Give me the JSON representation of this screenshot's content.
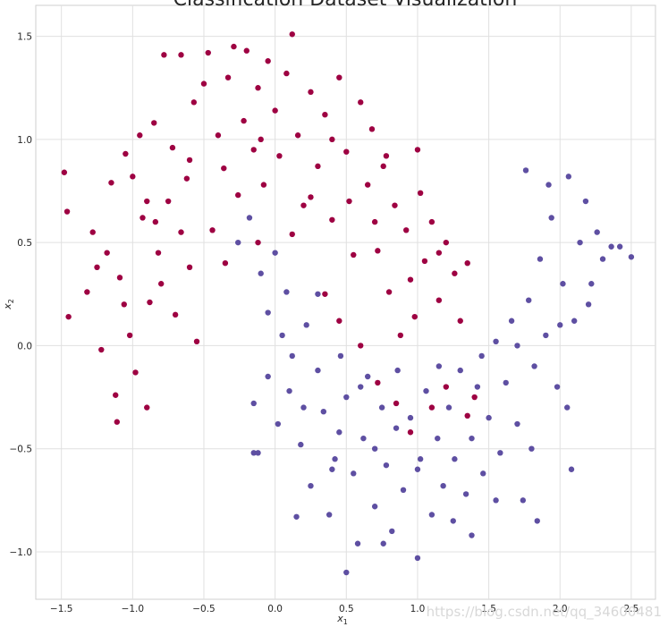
{
  "chart_data": {
    "type": "scatter",
    "title": "Classification Dataset Visualization",
    "xlabel": "x",
    "xlabel_sub": "1",
    "ylabel": "x",
    "ylabel_sub": "2",
    "xlim": [
      -1.68,
      2.67
    ],
    "ylim": [
      -1.23,
      1.65
    ],
    "xticks": [
      -1.5,
      -1.0,
      -0.5,
      0.0,
      0.5,
      1.0,
      1.5,
      2.0,
      2.5
    ],
    "xtick_labels": [
      "−1.5",
      "−1.0",
      "−0.5",
      "0.0",
      "0.5",
      "1.0",
      "1.5",
      "2.0",
      "2.5"
    ],
    "yticks": [
      -1.0,
      -0.5,
      0.0,
      0.5,
      1.0,
      1.5
    ],
    "ytick_labels": [
      "−1.0",
      "−0.5",
      "0.0",
      "0.5",
      "1.0",
      "1.5"
    ],
    "grid": true,
    "watermark": "https://blog.csdn.net/qq_34600481",
    "series": [
      {
        "color": "#9e0142",
        "points": [
          [
            -1.48,
            0.84
          ],
          [
            -1.46,
            0.65
          ],
          [
            -1.45,
            0.14
          ],
          [
            -1.32,
            0.26
          ],
          [
            -1.28,
            0.55
          ],
          [
            -1.22,
            -0.02
          ],
          [
            -1.18,
            0.45
          ],
          [
            -1.15,
            0.79
          ],
          [
            -1.12,
            -0.24
          ],
          [
            -1.11,
            -0.37
          ],
          [
            -1.09,
            0.33
          ],
          [
            -1.05,
            0.93
          ],
          [
            -1.02,
            0.05
          ],
          [
            -0.98,
            -0.13
          ],
          [
            -0.95,
            1.02
          ],
          [
            -0.93,
            0.62
          ],
          [
            -0.9,
            -0.3
          ],
          [
            -0.88,
            0.21
          ],
          [
            -0.85,
            1.08
          ],
          [
            -0.82,
            0.45
          ],
          [
            -0.78,
            1.41
          ],
          [
            -0.75,
            0.7
          ],
          [
            -0.72,
            0.96
          ],
          [
            -0.7,
            0.15
          ],
          [
            -0.66,
            1.41
          ],
          [
            -0.62,
            0.81
          ],
          [
            -0.6,
            0.38
          ],
          [
            -0.57,
            1.18
          ],
          [
            -0.55,
            0.02
          ],
          [
            -0.5,
            1.27
          ],
          [
            -0.47,
            1.42
          ],
          [
            -0.44,
            0.56
          ],
          [
            -0.4,
            1.02
          ],
          [
            -0.36,
            0.86
          ],
          [
            -0.33,
            1.3
          ],
          [
            -0.29,
            1.45
          ],
          [
            -0.26,
            0.73
          ],
          [
            -0.22,
            1.09
          ],
          [
            -0.2,
            1.43
          ],
          [
            -0.15,
            0.95
          ],
          [
            -0.12,
            1.25
          ],
          [
            -0.08,
            0.78
          ],
          [
            -0.05,
            1.38
          ],
          [
            0.0,
            1.14
          ],
          [
            0.03,
            0.92
          ],
          [
            0.08,
            1.32
          ],
          [
            0.12,
            1.51
          ],
          [
            0.16,
            1.02
          ],
          [
            0.2,
            0.68
          ],
          [
            0.25,
            1.23
          ],
          [
            0.3,
            0.87
          ],
          [
            0.35,
            1.12
          ],
          [
            0.4,
            0.61
          ],
          [
            0.45,
            1.3
          ],
          [
            0.5,
            0.94
          ],
          [
            0.55,
            0.44
          ],
          [
            0.6,
            1.18
          ],
          [
            0.65,
            0.78
          ],
          [
            0.68,
            1.05
          ],
          [
            0.72,
            0.46
          ],
          [
            0.76,
            0.87
          ],
          [
            0.8,
            0.26
          ],
          [
            0.84,
            0.68
          ],
          [
            0.88,
            0.05
          ],
          [
            0.92,
            0.56
          ],
          [
            0.95,
            0.32
          ],
          [
            0.98,
            0.14
          ],
          [
            1.02,
            0.74
          ],
          [
            1.05,
            0.41
          ],
          [
            1.1,
            0.6
          ],
          [
            1.15,
            0.22
          ],
          [
            1.2,
            0.5
          ],
          [
            1.26,
            0.35
          ],
          [
            1.3,
            0.12
          ],
          [
            1.35,
            0.4
          ],
          [
            0.35,
            0.25
          ],
          [
            0.45,
            0.12
          ],
          [
            0.6,
            0.0
          ],
          [
            0.72,
            -0.18
          ],
          [
            0.85,
            -0.28
          ],
          [
            0.95,
            -0.42
          ],
          [
            1.1,
            -0.3
          ],
          [
            1.2,
            -0.2
          ],
          [
            1.35,
            -0.34
          ],
          [
            1.4,
            -0.25
          ],
          [
            -1.25,
            0.38
          ],
          [
            -1.0,
            0.82
          ],
          [
            -0.84,
            0.6
          ],
          [
            -0.66,
            0.55
          ],
          [
            -0.35,
            0.4
          ],
          [
            -0.12,
            0.5
          ],
          [
            0.12,
            0.54
          ],
          [
            0.25,
            0.72
          ],
          [
            0.52,
            0.7
          ],
          [
            0.78,
            0.92
          ],
          [
            1.0,
            0.95
          ],
          [
            -1.06,
            0.2
          ],
          [
            -0.8,
            0.3
          ],
          [
            -0.6,
            0.9
          ],
          [
            -0.1,
            1.0
          ],
          [
            0.4,
            1.0
          ],
          [
            0.7,
            0.6
          ],
          [
            1.15,
            0.45
          ],
          [
            -0.9,
            0.7
          ]
        ]
      },
      {
        "color": "#5e4fa2",
        "points": [
          [
            -0.26,
            0.5
          ],
          [
            -0.18,
            0.62
          ],
          [
            -0.1,
            0.35
          ],
          [
            -0.05,
            0.16
          ],
          [
            0.0,
            0.45
          ],
          [
            0.05,
            0.05
          ],
          [
            0.08,
            0.26
          ],
          [
            0.12,
            -0.05
          ],
          [
            -0.15,
            -0.28
          ],
          [
            -0.12,
            -0.52
          ],
          [
            -0.05,
            -0.15
          ],
          [
            0.02,
            -0.38
          ],
          [
            0.1,
            -0.22
          ],
          [
            0.18,
            -0.48
          ],
          [
            0.22,
            0.1
          ],
          [
            0.25,
            -0.68
          ],
          [
            0.3,
            -0.12
          ],
          [
            0.34,
            -0.32
          ],
          [
            0.38,
            -0.82
          ],
          [
            0.42,
            -0.55
          ],
          [
            0.46,
            -0.05
          ],
          [
            0.5,
            -0.25
          ],
          [
            0.55,
            -0.62
          ],
          [
            0.58,
            -0.96
          ],
          [
            0.62,
            -0.45
          ],
          [
            0.65,
            -0.15
          ],
          [
            0.7,
            -0.78
          ],
          [
            0.75,
            -0.3
          ],
          [
            0.78,
            -0.58
          ],
          [
            0.82,
            -0.9
          ],
          [
            0.86,
            -0.12
          ],
          [
            0.9,
            -0.7
          ],
          [
            0.95,
            -0.35
          ],
          [
            1.0,
            -1.03
          ],
          [
            1.02,
            -0.55
          ],
          [
            1.06,
            -0.22
          ],
          [
            1.1,
            -0.82
          ],
          [
            1.14,
            -0.45
          ],
          [
            1.18,
            -0.68
          ],
          [
            1.22,
            -0.3
          ],
          [
            1.26,
            -0.55
          ],
          [
            1.3,
            -0.12
          ],
          [
            1.34,
            -0.72
          ],
          [
            1.38,
            -0.45
          ],
          [
            1.42,
            -0.2
          ],
          [
            1.46,
            -0.62
          ],
          [
            1.5,
            -0.35
          ],
          [
            1.55,
            0.02
          ],
          [
            1.58,
            -0.52
          ],
          [
            1.62,
            -0.18
          ],
          [
            1.66,
            0.12
          ],
          [
            1.7,
            -0.38
          ],
          [
            1.74,
            -0.75
          ],
          [
            1.78,
            0.22
          ],
          [
            1.82,
            -0.1
          ],
          [
            1.86,
            0.42
          ],
          [
            1.9,
            0.05
          ],
          [
            1.94,
            0.62
          ],
          [
            1.98,
            -0.2
          ],
          [
            2.02,
            0.3
          ],
          [
            2.06,
            0.82
          ],
          [
            2.1,
            0.12
          ],
          [
            2.14,
            0.5
          ],
          [
            2.18,
            0.7
          ],
          [
            2.22,
            0.3
          ],
          [
            2.26,
            0.55
          ],
          [
            2.3,
            0.42
          ],
          [
            2.36,
            0.48
          ],
          [
            2.42,
            0.48
          ],
          [
            2.5,
            0.43
          ],
          [
            1.76,
            0.85
          ],
          [
            1.92,
            0.78
          ],
          [
            0.5,
            -1.1
          ],
          [
            0.76,
            -0.96
          ],
          [
            1.38,
            -0.92
          ],
          [
            1.84,
            -0.85
          ],
          [
            2.08,
            -0.6
          ],
          [
            0.15,
            -0.83
          ],
          [
            -0.15,
            -0.52
          ],
          [
            0.3,
            0.25
          ],
          [
            0.45,
            -0.42
          ],
          [
            0.6,
            -0.2
          ],
          [
            0.85,
            -0.4
          ],
          [
            1.15,
            -0.1
          ],
          [
            1.45,
            -0.05
          ],
          [
            1.7,
            0.0
          ],
          [
            2.0,
            0.1
          ],
          [
            2.2,
            0.2
          ],
          [
            0.2,
            -0.3
          ],
          [
            0.4,
            -0.6
          ],
          [
            0.7,
            -0.5
          ],
          [
            1.0,
            -0.6
          ],
          [
            1.25,
            -0.85
          ],
          [
            1.55,
            -0.75
          ],
          [
            1.8,
            -0.5
          ],
          [
            2.05,
            -0.3
          ]
        ]
      }
    ]
  }
}
